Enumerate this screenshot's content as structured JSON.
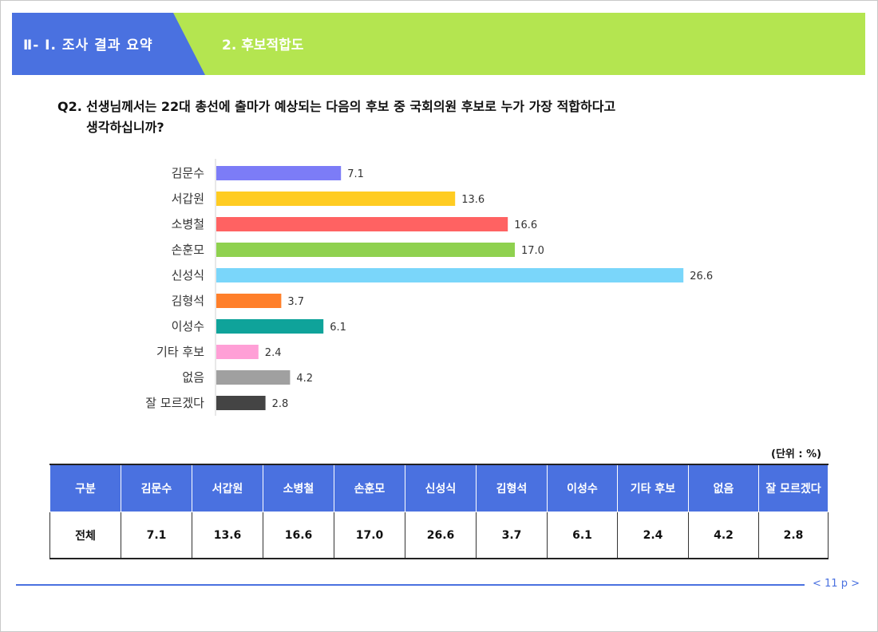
{
  "header": {
    "section_title": "Ⅱ- Ⅰ. 조사 결과 요약",
    "sub_title": "2. 후보적합도",
    "colors": {
      "left": "#4a71e0",
      "right": "#b4e550"
    }
  },
  "question": {
    "number": "Q2.",
    "line1": "선생님께서는 22대 총선에 출마가 예상되는 다음의 후보 중 국회의원 후보로 누가 가장 적합하다고",
    "line2": "생각하십니까?"
  },
  "chart_data": {
    "type": "bar",
    "orientation": "horizontal",
    "categories": [
      "김문수",
      "서갑원",
      "소병철",
      "손훈모",
      "신성식",
      "김형석",
      "이성수",
      "기타 후보",
      "없음",
      "잘 모르겠다"
    ],
    "values": [
      7.1,
      13.6,
      16.6,
      17.0,
      26.6,
      3.7,
      6.1,
      2.4,
      4.2,
      2.8
    ],
    "value_labels": [
      "7.1",
      "13.6",
      "16.6",
      "17.0",
      "26.6",
      "3.7",
      "6.1",
      "2.4",
      "4.2",
      "2.8"
    ],
    "colors": [
      "#7c7cf7",
      "#ffcc22",
      "#ff6262",
      "#8fd14f",
      "#7ad6fa",
      "#ff7f2a",
      "#0fa39a",
      "#ff9fd6",
      "#a0a0a0",
      "#444444"
    ],
    "title": "",
    "xlabel": "",
    "ylabel": "",
    "grid": false,
    "legend": "none"
  },
  "table": {
    "unit": "(단위 : %)",
    "headers": [
      "구분",
      "김문수",
      "서갑원",
      "소병철",
      "손훈모",
      "신성식",
      "김형석",
      "이성수",
      "기타 후보",
      "없음",
      "잘 모르겠다"
    ],
    "rows": [
      [
        "전체",
        "7.1",
        "13.6",
        "16.6",
        "17.0",
        "26.6",
        "3.7",
        "6.1",
        "2.4",
        "4.2",
        "2.8"
      ]
    ]
  },
  "footer": {
    "page": "< 11 p >"
  }
}
